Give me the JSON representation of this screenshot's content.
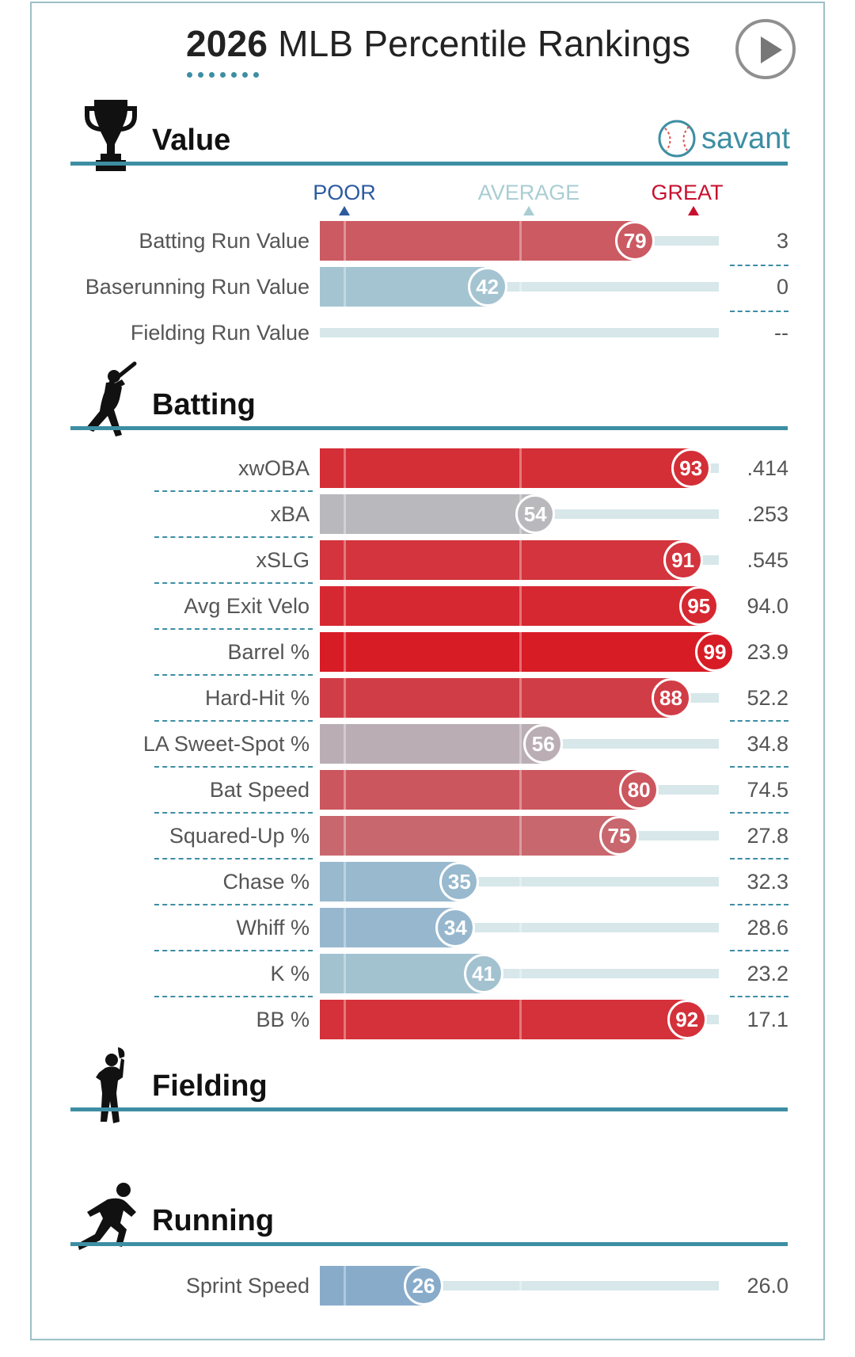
{
  "header": {
    "title_year": "2026",
    "title_rest": "MLB Percentile Rankings",
    "brand": "savant"
  },
  "scale": {
    "poor": "POOR",
    "average": "AVERAGE",
    "great": "GREAT",
    "poor_color": "#2c5aa0",
    "average_color": "#a9cdd3",
    "great_color": "#c8102e"
  },
  "sections": {
    "value": "Value",
    "batting": "Batting",
    "fielding": "Fielding",
    "running": "Running"
  },
  "chart_data": {
    "type": "bar",
    "title": "2026 MLB Percentile Rankings",
    "xlim": [
      0,
      100
    ],
    "groups": [
      {
        "name": "Value",
        "metrics": [
          {
            "label": "Batting Run Value",
            "percentile": 79,
            "value": "3"
          },
          {
            "label": "Baserunning Run Value",
            "percentile": 42,
            "value": "0"
          },
          {
            "label": "Fielding Run Value",
            "percentile": null,
            "value": "--"
          }
        ]
      },
      {
        "name": "Batting",
        "metrics": [
          {
            "label": "xwOBA",
            "percentile": 93,
            "value": ".414"
          },
          {
            "label": "xBA",
            "percentile": 54,
            "value": ".253"
          },
          {
            "label": "xSLG",
            "percentile": 91,
            "value": ".545"
          },
          {
            "label": "Avg Exit Velo",
            "percentile": 95,
            "value": "94.0"
          },
          {
            "label": "Barrel %",
            "percentile": 99,
            "value": "23.9"
          },
          {
            "label": "Hard-Hit %",
            "percentile": 88,
            "value": "52.2"
          },
          {
            "label": "LA Sweet-Spot %",
            "percentile": 56,
            "value": "34.8"
          },
          {
            "label": "Bat Speed",
            "percentile": 80,
            "value": "74.5"
          },
          {
            "label": "Squared-Up %",
            "percentile": 75,
            "value": "27.8"
          },
          {
            "label": "Chase %",
            "percentile": 35,
            "value": "32.3"
          },
          {
            "label": "Whiff %",
            "percentile": 34,
            "value": "28.6"
          },
          {
            "label": "K %",
            "percentile": 41,
            "value": "23.2"
          },
          {
            "label": "BB %",
            "percentile": 92,
            "value": "17.1"
          }
        ]
      },
      {
        "name": "Fielding",
        "metrics": []
      },
      {
        "name": "Running",
        "metrics": [
          {
            "label": "Sprint Speed",
            "percentile": 26,
            "value": "26.0"
          }
        ]
      }
    ]
  }
}
